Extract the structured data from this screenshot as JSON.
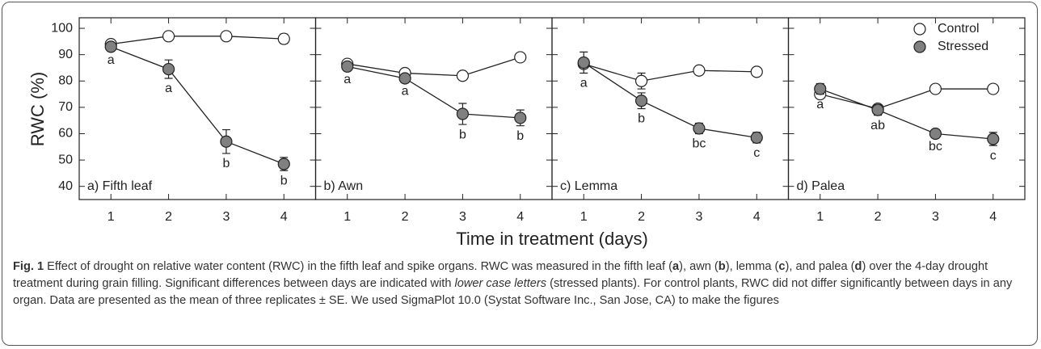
{
  "chart_data": [
    {
      "type": "line",
      "title": "a) Fifth leaf",
      "x": [
        1,
        2,
        3,
        4
      ],
      "xlim": [
        0.45,
        4.55
      ],
      "xticks": [
        1,
        2,
        3,
        4
      ],
      "ylim": [
        35,
        104
      ],
      "yticks": [
        40,
        50,
        60,
        70,
        80,
        90,
        100
      ],
      "series": [
        {
          "name": "Control",
          "color": "#ffffff",
          "values": [
            94,
            97,
            97,
            96
          ],
          "errors": [
            1,
            1,
            1,
            1.8
          ]
        },
        {
          "name": "Stressed",
          "color": "#808080",
          "values": [
            93,
            84.5,
            57,
            48.5
          ],
          "errors": [
            1.2,
            3.5,
            4.5,
            2.5
          ]
        }
      ],
      "annotations": [
        "a",
        "a",
        "b",
        "b"
      ]
    },
    {
      "type": "line",
      "title": "b) Awn",
      "x": [
        1,
        2,
        3,
        4
      ],
      "xlim": [
        0.45,
        4.55
      ],
      "xticks": [
        1,
        2,
        3,
        4
      ],
      "ylim": [
        35,
        104
      ],
      "yticks": [
        40,
        50,
        60,
        70,
        80,
        90,
        100
      ],
      "series": [
        {
          "name": "Control",
          "color": "#ffffff",
          "values": [
            86.5,
            83,
            82,
            89
          ],
          "errors": [
            1,
            1,
            1,
            1
          ]
        },
        {
          "name": "Stressed",
          "color": "#808080",
          "values": [
            85.5,
            81,
            67.5,
            66
          ],
          "errors": [
            1,
            1,
            4,
            3
          ]
        }
      ],
      "annotations": [
        "a",
        "a",
        "b",
        "b"
      ]
    },
    {
      "type": "line",
      "title": "c) Lemma",
      "x": [
        1,
        2,
        3,
        4
      ],
      "xlim": [
        0.45,
        4.55
      ],
      "xticks": [
        1,
        2,
        3,
        4
      ],
      "ylim": [
        35,
        104
      ],
      "yticks": [
        40,
        50,
        60,
        70,
        80,
        90,
        100
      ],
      "series": [
        {
          "name": "Control",
          "color": "#ffffff",
          "values": [
            86.5,
            80,
            84,
            83.5
          ],
          "errors": [
            1,
            3,
            1,
            1.5
          ]
        },
        {
          "name": "Stressed",
          "color": "#808080",
          "values": [
            87,
            72.5,
            62,
            58.5
          ],
          "errors": [
            4,
            3,
            2,
            2
          ]
        }
      ],
      "annotations": [
        "a",
        "b",
        "bc",
        "c"
      ]
    },
    {
      "type": "line",
      "title": "d) Palea",
      "x": [
        1,
        2,
        3,
        4
      ],
      "xlim": [
        0.45,
        4.55
      ],
      "xticks": [
        1,
        2,
        3,
        4
      ],
      "ylim": [
        35,
        104
      ],
      "yticks": [
        40,
        50,
        60,
        70,
        80,
        90,
        100
      ],
      "series": [
        {
          "name": "Control",
          "color": "#ffffff",
          "values": [
            75,
            69.5,
            77,
            77
          ],
          "errors": [
            1.5,
            1,
            1,
            1
          ]
        },
        {
          "name": "Stressed",
          "color": "#808080",
          "values": [
            77,
            69,
            60,
            58
          ],
          "errors": [
            2,
            2,
            1,
            2.5
          ]
        }
      ],
      "annotations": [
        "a",
        "ab",
        "bc",
        "c"
      ],
      "legend": "upper right"
    }
  ],
  "axis_labels": {
    "y": "RWC (%)",
    "x": "Time in treatment (days)"
  },
  "caption": [
    {
      "text": "Fig. 1",
      "style": "bold"
    },
    {
      "text": " Effect of drought on relative water content (RWC) in the fifth leaf and spike organs. RWC was measured in the fifth leaf ("
    },
    {
      "text": "a",
      "style": "bold"
    },
    {
      "text": "), awn ("
    },
    {
      "text": "b",
      "style": "bold"
    },
    {
      "text": "), lemma ("
    },
    {
      "text": "c",
      "style": "bold"
    },
    {
      "text": "), and palea ("
    },
    {
      "text": "d",
      "style": "bold"
    },
    {
      "text": ") over the 4-day drought treatment during grain filling. Significant differences between days are indicated with "
    },
    {
      "text": "lower case letters",
      "style": "italic"
    },
    {
      "text": " (stressed plants). For control plants, RWC did not differ significantly between days in any organ. Data are presented as the mean of three replicates ± SE. We used SigmaPlot 10.0 (Systat Software Inc., San Jose, CA) to make the figures"
    }
  ]
}
